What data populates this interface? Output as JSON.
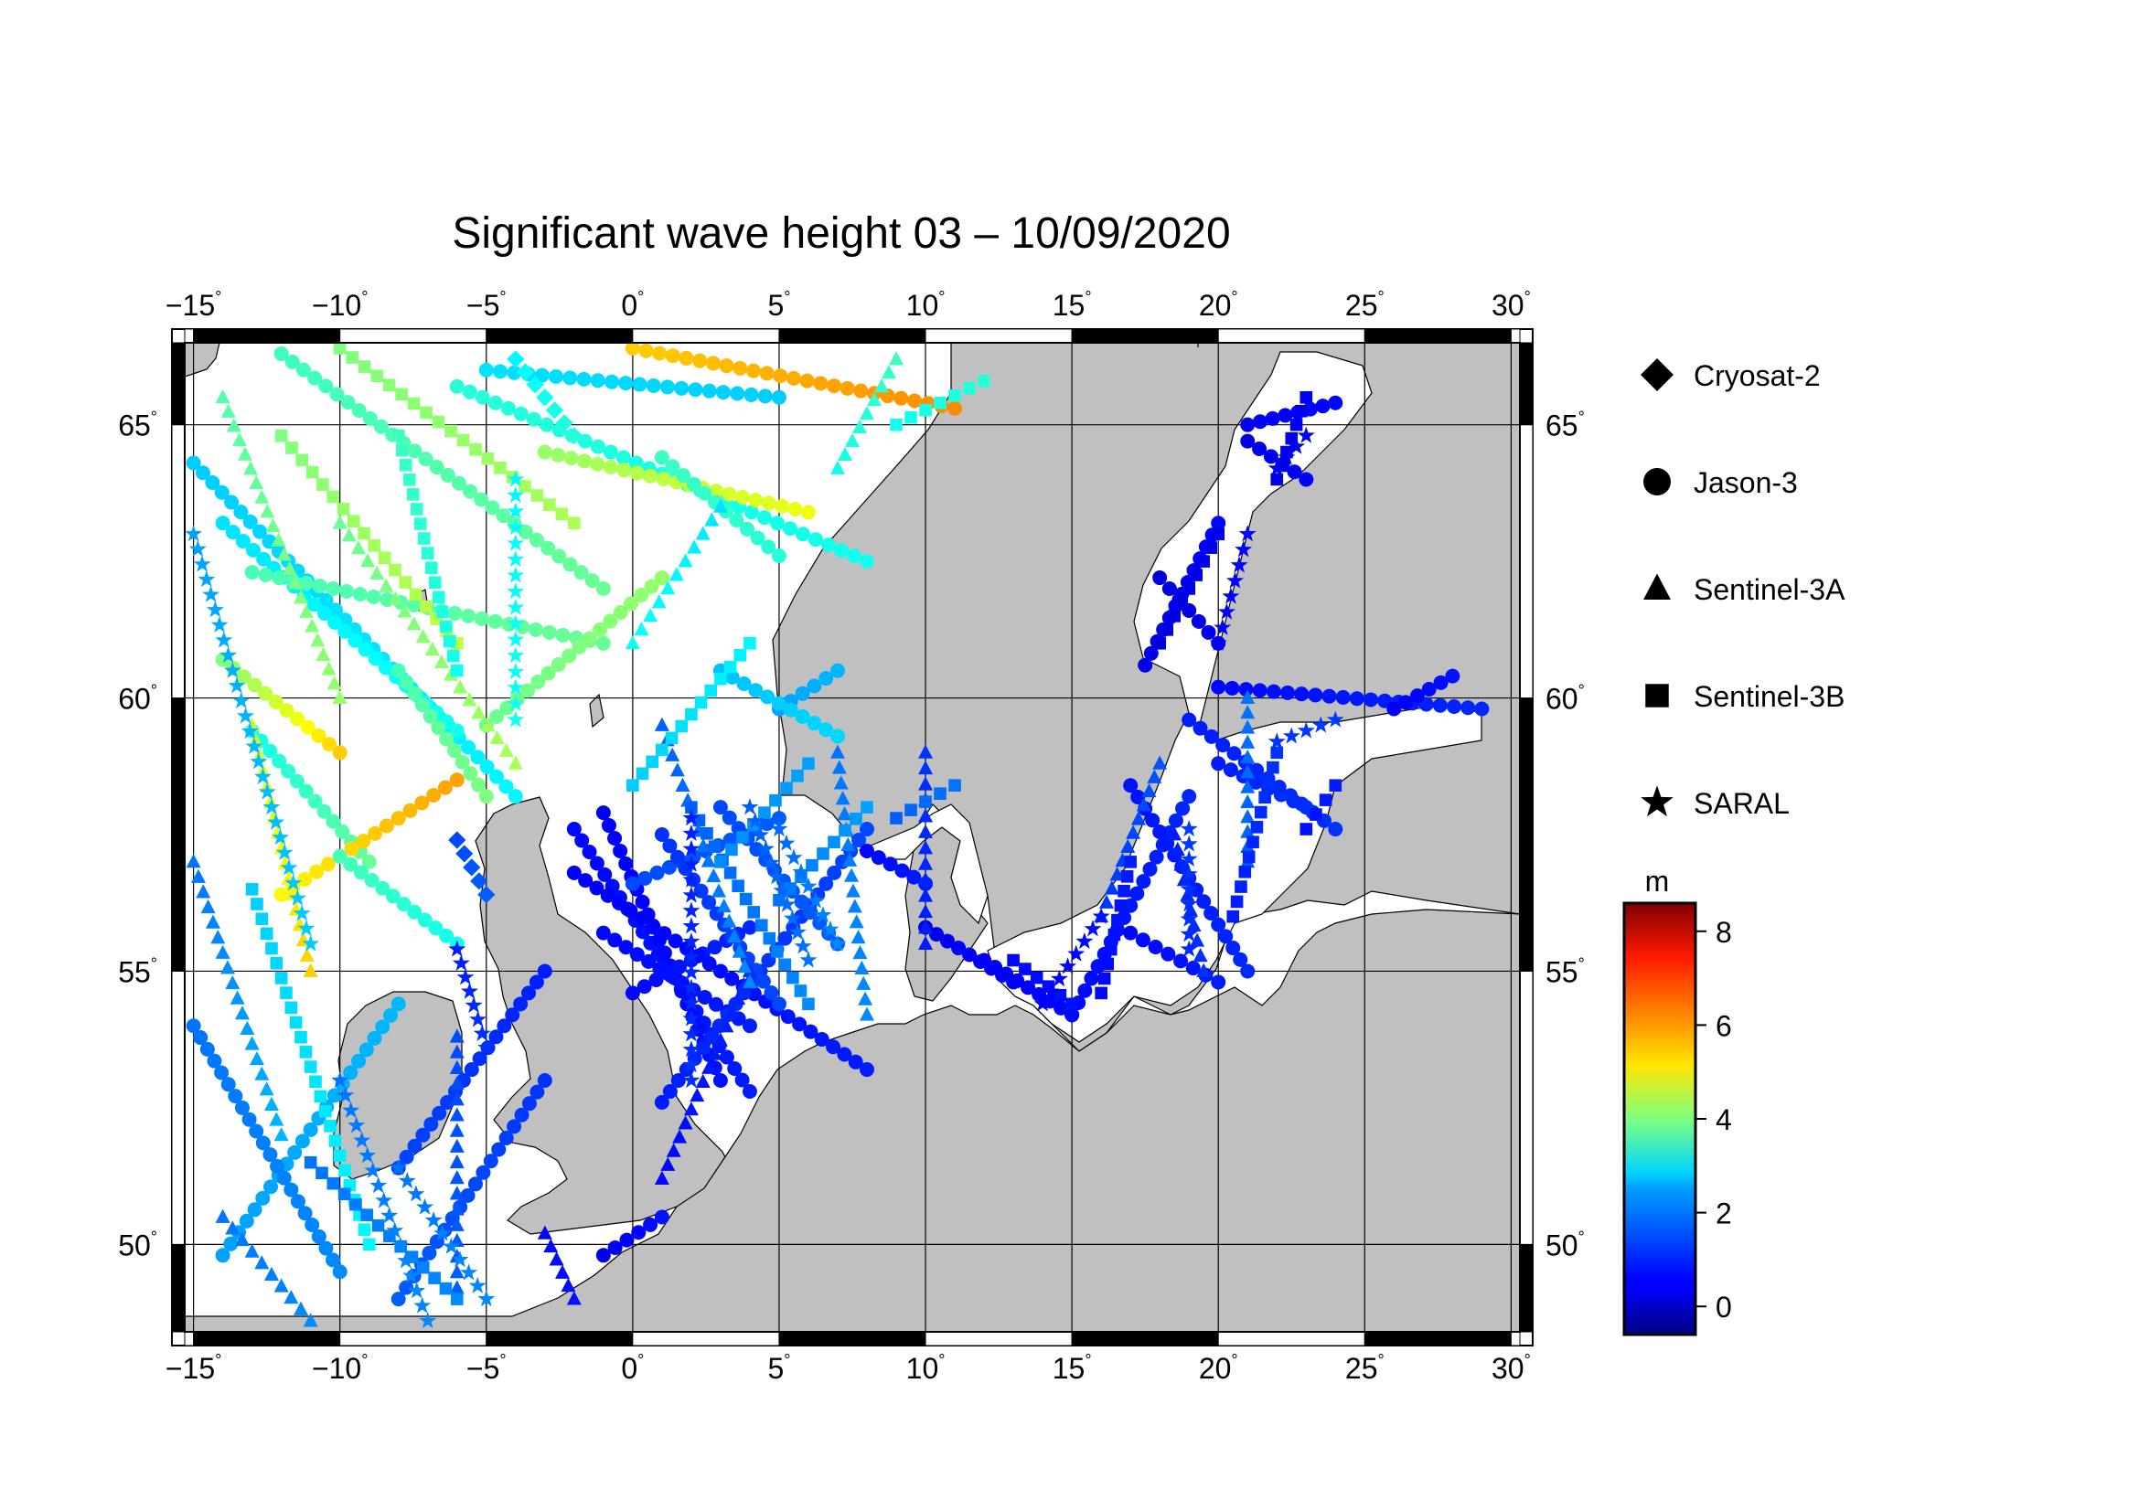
{
  "title": "Significant wave height 03 – 10/09/2020",
  "map": {
    "lon_ticks": [
      -15,
      -10,
      -5,
      0,
      5,
      10,
      15,
      20,
      25,
      30
    ],
    "lat_ticks": [
      50,
      55,
      60,
      65
    ],
    "lon_range": [
      -15.3,
      30.3
    ],
    "lat_range": [
      48.4,
      66.5
    ],
    "land_color": "#c0c0c0",
    "sea_color": "#ffffff",
    "degree_symbol": "°"
  },
  "legend": {
    "satellites": [
      {
        "name": "Cryosat-2",
        "symbol": "diamond"
      },
      {
        "name": "Jason-3",
        "symbol": "circle"
      },
      {
        "name": "Sentinel-3A",
        "symbol": "triangle"
      },
      {
        "name": "Sentinel-3B",
        "symbol": "square"
      },
      {
        "name": "SARAL",
        "symbol": "star"
      }
    ]
  },
  "colorbar": {
    "unit": "m",
    "min": -0.6,
    "max": 8.6,
    "ticks": [
      0,
      2,
      4,
      6,
      8
    ],
    "colormap": "jet"
  },
  "tracks": [
    {
      "sat": "Jason-3",
      "from": [
        -15,
        64.3
      ],
      "to": [
        -4,
        58.2
      ],
      "v": [
        2.4,
        2.8
      ]
    },
    {
      "sat": "Jason-3",
      "from": [
        -14,
        63.2
      ],
      "to": [
        -6,
        59.4
      ],
      "v": [
        2.6,
        3.0
      ]
    },
    {
      "sat": "Jason-3",
      "from": [
        -12,
        66.3
      ],
      "to": [
        -1,
        62.0
      ],
      "v": [
        3.4,
        3.8
      ]
    },
    {
      "sat": "Jason-3",
      "from": [
        -13,
        62.3
      ],
      "to": [
        -1,
        61.0
      ],
      "v": [
        3.5,
        3.8
      ]
    },
    {
      "sat": "Jason-3",
      "from": [
        -6,
        65.7
      ],
      "to": [
        8,
        62.5
      ],
      "v": [
        3.2,
        3.0
      ]
    },
    {
      "sat": "Jason-3",
      "from": [
        -5,
        66.0
      ],
      "to": [
        5,
        65.5
      ],
      "v": [
        2.6,
        2.4
      ]
    },
    {
      "sat": "Jason-3",
      "from": [
        0,
        66.4
      ],
      "to": [
        11,
        65.3
      ],
      "v": [
        5.6,
        6.2
      ]
    },
    {
      "sat": "Jason-3",
      "from": [
        -3,
        64.5
      ],
      "to": [
        6,
        63.4
      ],
      "v": [
        4.2,
        5.0
      ]
    },
    {
      "sat": "Jason-3",
      "from": [
        1,
        64.4
      ],
      "to": [
        5,
        62.6
      ],
      "v": [
        3.4,
        3.2
      ]
    },
    {
      "sat": "Jason-3",
      "from": [
        -13,
        59.4
      ],
      "to": [
        -9,
        57.0
      ],
      "v": [
        3.0,
        3.8
      ]
    },
    {
      "sat": "Jason-3",
      "from": [
        -8,
        60.5
      ],
      "to": [
        -5,
        58.2
      ],
      "v": [
        3.5,
        4.0
      ]
    },
    {
      "sat": "Jason-3",
      "from": [
        -14,
        60.7
      ],
      "to": [
        -10,
        59.0
      ],
      "v": [
        4.0,
        5.6
      ]
    },
    {
      "sat": "Jason-3",
      "from": [
        -12,
        56.4
      ],
      "to": [
        -6,
        58.5
      ],
      "v": [
        5.2,
        6.0
      ]
    },
    {
      "sat": "Jason-3",
      "from": [
        -10,
        57.1
      ],
      "to": [
        -6,
        55.5
      ],
      "v": [
        3.5,
        3.0
      ]
    },
    {
      "sat": "Jason-3",
      "from": [
        -2,
        57.6
      ],
      "to": [
        4,
        52.8
      ],
      "v": [
        0.6,
        0.8
      ]
    },
    {
      "sat": "Jason-3",
      "from": [
        -1,
        57.9
      ],
      "to": [
        3,
        53.0
      ],
      "v": [
        0.5,
        0.7
      ]
    },
    {
      "sat": "Jason-3",
      "from": [
        -1,
        55.7
      ],
      "to": [
        4,
        54.0
      ],
      "v": [
        0.6,
        0.8
      ]
    },
    {
      "sat": "Jason-3",
      "from": [
        0,
        54.6
      ],
      "to": [
        4,
        55.8
      ],
      "v": [
        0.6,
        0.9
      ]
    },
    {
      "sat": "Jason-3",
      "from": [
        -2,
        56.8
      ],
      "to": [
        8,
        53.2
      ],
      "v": [
        0.5,
        0.8
      ]
    },
    {
      "sat": "Jason-3",
      "from": [
        1,
        52.6
      ],
      "to": [
        8,
        57.6
      ],
      "v": [
        0.8,
        1.2
      ]
    },
    {
      "sat": "Jason-3",
      "from": [
        0,
        56.6
      ],
      "to": [
        5,
        57.8
      ],
      "v": [
        1.2,
        1.4
      ]
    },
    {
      "sat": "Jason-3",
      "from": [
        1,
        57.5
      ],
      "to": [
        5,
        54.4
      ],
      "v": [
        1.0,
        1.2
      ]
    },
    {
      "sat": "Jason-3",
      "from": [
        3,
        58.0
      ],
      "to": [
        7,
        55.5
      ],
      "v": [
        1.2,
        1.4
      ]
    },
    {
      "sat": "Jason-3",
      "from": [
        5,
        59.8
      ],
      "to": [
        7,
        60.5
      ],
      "v": [
        2.0,
        2.2
      ]
    },
    {
      "sat": "Jason-3",
      "from": [
        3,
        60.5
      ],
      "to": [
        7,
        59.3
      ],
      "v": [
        2.3,
        2.5
      ]
    },
    {
      "sat": "Jason-3",
      "from": [
        -5,
        59.5
      ],
      "to": [
        1,
        62.2
      ],
      "v": [
        3.8,
        4.2
      ]
    },
    {
      "sat": "Jason-3",
      "from": [
        -1,
        49.8
      ],
      "to": [
        1,
        50.5
      ],
      "v": [
        0.4,
        0.7
      ]
    },
    {
      "sat": "Jason-3",
      "from": [
        -8,
        51.4
      ],
      "to": [
        -3,
        55.0
      ],
      "v": [
        1.2,
        0.8
      ]
    },
    {
      "sat": "Jason-3",
      "from": [
        -8,
        49.0
      ],
      "to": [
        -3,
        53.0
      ],
      "v": [
        1.4,
        1.0
      ]
    },
    {
      "sat": "Jason-3",
      "from": [
        -14,
        49.8
      ],
      "to": [
        -8,
        54.4
      ],
      "v": [
        2.0,
        2.2
      ]
    },
    {
      "sat": "Jason-3",
      "from": [
        -15,
        54.0
      ],
      "to": [
        -10,
        49.5
      ],
      "v": [
        1.6,
        1.8
      ]
    },
    {
      "sat": "Jason-3",
      "from": [
        10,
        55.8
      ],
      "to": [
        13,
        54.8
      ],
      "v": [
        0.4,
        0.5
      ]
    },
    {
      "sat": "Jason-3",
      "from": [
        8,
        57.2
      ],
      "to": [
        10,
        56.6
      ],
      "v": [
        0.6,
        0.8
      ]
    },
    {
      "sat": "Jason-3",
      "from": [
        12,
        55.2
      ],
      "to": [
        15,
        54.2
      ],
      "v": [
        0.5,
        0.6
      ]
    },
    {
      "sat": "Jason-3",
      "from": [
        15,
        54.2
      ],
      "to": [
        19,
        58.2
      ],
      "v": [
        0.6,
        0.9
      ]
    },
    {
      "sat": "Jason-3",
      "from": [
        17,
        55.7
      ],
      "to": [
        20,
        54.8
      ],
      "v": [
        0.6,
        0.8
      ]
    },
    {
      "sat": "Jason-3",
      "from": [
        17,
        58.4
      ],
      "to": [
        21,
        55.0
      ],
      "v": [
        0.7,
        0.9
      ]
    },
    {
      "sat": "Jason-3",
      "from": [
        20,
        58.8
      ],
      "to": [
        23,
        58.0
      ],
      "v": [
        0.8,
        1.0
      ]
    },
    {
      "sat": "Jason-3",
      "from": [
        19,
        59.6
      ],
      "to": [
        24,
        57.6
      ],
      "v": [
        0.8,
        1.0
      ]
    },
    {
      "sat": "Jason-3",
      "from": [
        20,
        60.2
      ],
      "to": [
        29,
        59.8
      ],
      "v": [
        0.6,
        0.9
      ]
    },
    {
      "sat": "Jason-3",
      "from": [
        26,
        59.8
      ],
      "to": [
        28,
        60.4
      ],
      "v": [
        0.5,
        0.7
      ]
    },
    {
      "sat": "Jason-3",
      "from": [
        17.5,
        60.6
      ],
      "to": [
        20,
        63.2
      ],
      "v": [
        0.3,
        0.6
      ]
    },
    {
      "sat": "Jason-3",
      "from": [
        18,
        62.2
      ],
      "to": [
        20,
        61.0
      ],
      "v": [
        0.2,
        0.4
      ]
    },
    {
      "sat": "Jason-3",
      "from": [
        21,
        65.0
      ],
      "to": [
        24,
        65.4
      ],
      "v": [
        0.4,
        0.6
      ]
    },
    {
      "sat": "Jason-3",
      "from": [
        21,
        64.7
      ],
      "to": [
        23,
        64.0
      ],
      "v": [
        0.3,
        0.5
      ]
    },
    {
      "sat": "Sentinel-3A",
      "from": [
        -14,
        65.5
      ],
      "to": [
        -10,
        60.0
      ],
      "v": [
        3.6,
        4.2
      ]
    },
    {
      "sat": "Sentinel-3A",
      "from": [
        -10,
        63.2
      ],
      "to": [
        -4,
        58.8
      ],
      "v": [
        3.8,
        4.4
      ]
    },
    {
      "sat": "Sentinel-3A",
      "from": [
        -13,
        59.5
      ],
      "to": [
        -11,
        55.0
      ],
      "v": [
        4.6,
        5.6
      ]
    },
    {
      "sat": "Sentinel-3A",
      "from": [
        -15,
        57.0
      ],
      "to": [
        -12,
        52.0
      ],
      "v": [
        1.6,
        2.2
      ]
    },
    {
      "sat": "Sentinel-3A",
      "from": [
        -14,
        50.5
      ],
      "to": [
        -11,
        48.6
      ],
      "v": [
        1.6,
        1.8
      ]
    },
    {
      "sat": "Sentinel-3A",
      "from": [
        -6,
        53.8
      ],
      "to": [
        -6,
        49.2
      ],
      "v": [
        1.2,
        1.4
      ]
    },
    {
      "sat": "Sentinel-3A",
      "from": [
        -3,
        50.2
      ],
      "to": [
        -2,
        49.0
      ],
      "v": [
        0.6,
        0.7
      ]
    },
    {
      "sat": "Sentinel-3A",
      "from": [
        1,
        51.2
      ],
      "to": [
        4,
        55.0
      ],
      "v": [
        0.6,
        0.9
      ]
    },
    {
      "sat": "Sentinel-3A",
      "from": [
        1,
        59.5
      ],
      "to": [
        4,
        54.8
      ],
      "v": [
        1.4,
        1.8
      ]
    },
    {
      "sat": "Sentinel-3A",
      "from": [
        3,
        63.5
      ],
      "to": [
        0,
        61.0
      ],
      "v": [
        2.6,
        3.0
      ]
    },
    {
      "sat": "Sentinel-3A",
      "from": [
        7,
        59.0
      ],
      "to": [
        8,
        54.2
      ],
      "v": [
        1.6,
        1.8
      ]
    },
    {
      "sat": "Sentinel-3A",
      "from": [
        7,
        64.2
      ],
      "to": [
        9,
        66.2
      ],
      "v": [
        3.0,
        3.4
      ]
    },
    {
      "sat": "Sentinel-3A",
      "from": [
        10,
        55.5
      ],
      "to": [
        10,
        59.0
      ],
      "v": [
        0.8,
        1.0
      ]
    },
    {
      "sat": "Sentinel-3A",
      "from": [
        16,
        56.0
      ],
      "to": [
        18,
        58.8
      ],
      "v": [
        1.0,
        1.3
      ]
    },
    {
      "sat": "Sentinel-3A",
      "from": [
        18.5,
        57.5
      ],
      "to": [
        19.5,
        55.0
      ],
      "v": [
        0.8,
        1.0
      ]
    },
    {
      "sat": "Sentinel-3A",
      "from": [
        21,
        57.0
      ],
      "to": [
        21,
        60.0
      ],
      "v": [
        1.4,
        1.6
      ]
    },
    {
      "sat": "Sentinel-3B",
      "from": [
        -12,
        64.8
      ],
      "to": [
        -6,
        61.0
      ],
      "v": [
        4.0,
        4.6
      ]
    },
    {
      "sat": "Sentinel-3B",
      "from": [
        -10,
        66.4
      ],
      "to": [
        -2,
        63.2
      ],
      "v": [
        4.0,
        4.4
      ]
    },
    {
      "sat": "Sentinel-3B",
      "from": [
        -6,
        60.5
      ],
      "to": [
        -8,
        64.8
      ],
      "v": [
        3.0,
        3.4
      ]
    },
    {
      "sat": "Sentinel-3B",
      "from": [
        -13,
        56.5
      ],
      "to": [
        -9,
        50.0
      ],
      "v": [
        2.4,
        2.8
      ]
    },
    {
      "sat": "Sentinel-3B",
      "from": [
        -11,
        51.5
      ],
      "to": [
        -6,
        49.0
      ],
      "v": [
        1.6,
        1.8
      ]
    },
    {
      "sat": "Sentinel-3B",
      "from": [
        0,
        58.4
      ],
      "to": [
        4,
        61.0
      ],
      "v": [
        2.4,
        2.8
      ]
    },
    {
      "sat": "Sentinel-3B",
      "from": [
        2,
        58.0
      ],
      "to": [
        6,
        54.4
      ],
      "v": [
        1.4,
        1.8
      ]
    },
    {
      "sat": "Sentinel-3B",
      "from": [
        3,
        57.0
      ],
      "to": [
        6,
        58.8
      ],
      "v": [
        1.8,
        2.0
      ]
    },
    {
      "sat": "Sentinel-3B",
      "from": [
        5,
        56.3
      ],
      "to": [
        8,
        58.0
      ],
      "v": [
        1.6,
        2.0
      ]
    },
    {
      "sat": "Sentinel-3B",
      "from": [
        9,
        57.8
      ],
      "to": [
        11,
        58.4
      ],
      "v": [
        1.4,
        1.6
      ]
    },
    {
      "sat": "Sentinel-3B",
      "from": [
        9,
        65.0
      ],
      "to": [
        12,
        65.8
      ],
      "v": [
        3.0,
        3.2
      ]
    },
    {
      "sat": "Sentinel-3B",
      "from": [
        13,
        55.2
      ],
      "to": [
        15,
        54.4
      ],
      "v": [
        0.6,
        0.7
      ]
    },
    {
      "sat": "Sentinel-3B",
      "from": [
        16,
        54.6
      ],
      "to": [
        17,
        57.0
      ],
      "v": [
        0.6,
        0.8
      ]
    },
    {
      "sat": "Sentinel-3B",
      "from": [
        20.5,
        56.0
      ],
      "to": [
        22,
        59.0
      ],
      "v": [
        0.8,
        1.0
      ]
    },
    {
      "sat": "Sentinel-3B",
      "from": [
        18,
        61.0
      ],
      "to": [
        20,
        63.0
      ],
      "v": [
        0.2,
        0.4
      ]
    },
    {
      "sat": "Sentinel-3B",
      "from": [
        22,
        64.0
      ],
      "to": [
        23,
        65.5
      ],
      "v": [
        0.3,
        0.5
      ]
    },
    {
      "sat": "Sentinel-3B",
      "from": [
        23,
        57.6
      ],
      "to": [
        24,
        58.4
      ],
      "v": [
        0.7,
        0.8
      ]
    },
    {
      "sat": "SARAL",
      "from": [
        -15,
        63.0
      ],
      "to": [
        -11,
        55.5
      ],
      "v": [
        2.0,
        2.4
      ]
    },
    {
      "sat": "SARAL",
      "from": [
        -4,
        64.0
      ],
      "to": [
        -4,
        59.6
      ],
      "v": [
        2.8,
        3.0
      ]
    },
    {
      "sat": "SARAL",
      "from": [
        -10,
        53.0
      ],
      "to": [
        -7,
        48.6
      ],
      "v": [
        1.6,
        1.8
      ]
    },
    {
      "sat": "SARAL",
      "from": [
        -8,
        51.4
      ],
      "to": [
        -5,
        49.0
      ],
      "v": [
        1.6,
        1.8
      ]
    },
    {
      "sat": "SARAL",
      "from": [
        -6,
        55.4
      ],
      "to": [
        -5,
        53.6
      ],
      "v": [
        0.8,
        1.0
      ]
    },
    {
      "sat": "SARAL",
      "from": [
        2,
        57.8
      ],
      "to": [
        2,
        53.0
      ],
      "v": [
        0.8,
        1.0
      ]
    },
    {
      "sat": "SARAL",
      "from": [
        4,
        58.0
      ],
      "to": [
        6,
        55.2
      ],
      "v": [
        1.4,
        1.6
      ]
    },
    {
      "sat": "SARAL",
      "from": [
        5,
        57.6
      ],
      "to": [
        7,
        55.5
      ],
      "v": [
        1.5,
        1.8
      ]
    },
    {
      "sat": "SARAL",
      "from": [
        14,
        54.4
      ],
      "to": [
        16,
        56.0
      ],
      "v": [
        0.5,
        0.7
      ]
    },
    {
      "sat": "SARAL",
      "from": [
        19,
        55.4
      ],
      "to": [
        19,
        57.6
      ],
      "v": [
        0.9,
        1.1
      ]
    },
    {
      "sat": "SARAL",
      "from": [
        20,
        61.0
      ],
      "to": [
        21,
        63.0
      ],
      "v": [
        0.4,
        0.6
      ]
    },
    {
      "sat": "SARAL",
      "from": [
        22,
        59.2
      ],
      "to": [
        24,
        59.6
      ],
      "v": [
        1.0,
        1.1
      ]
    },
    {
      "sat": "SARAL",
      "from": [
        22,
        64.2
      ],
      "to": [
        23,
        64.8
      ],
      "v": [
        0.4,
        0.5
      ]
    },
    {
      "sat": "Cryosat-2",
      "from": [
        -4,
        66.2
      ],
      "to": [
        -2,
        64.8
      ],
      "v": [
        2.8,
        3.2
      ]
    },
    {
      "sat": "Cryosat-2",
      "from": [
        -6,
        57.4
      ],
      "to": [
        -5,
        56.4
      ],
      "v": [
        1.2,
        1.4
      ]
    }
  ]
}
